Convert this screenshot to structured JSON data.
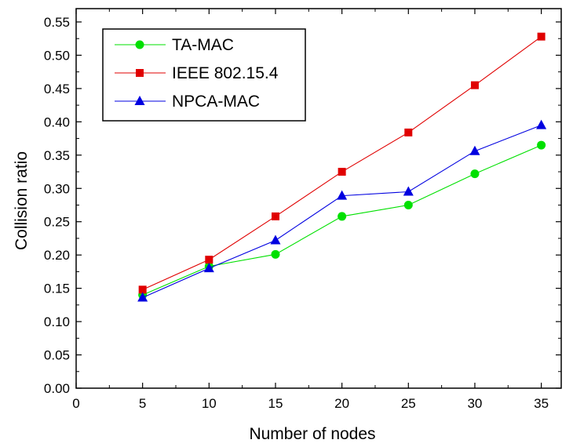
{
  "chart_data": {
    "type": "line",
    "title": "",
    "xlabel": "Number of nodes",
    "ylabel": "Collision ratio",
    "xlim": [
      0,
      36.5
    ],
    "ylim": [
      0,
      0.57
    ],
    "xticks": [
      0,
      5,
      10,
      15,
      20,
      25,
      30,
      35
    ],
    "yticks": [
      0.0,
      0.05,
      0.1,
      0.15,
      0.2,
      0.25,
      0.3,
      0.35,
      0.4,
      0.45,
      0.5,
      0.55
    ],
    "x_tick_labels": [
      "0",
      "5",
      "10",
      "15",
      "20",
      "25",
      "30",
      "35"
    ],
    "y_tick_labels": [
      "0.00",
      "0.05",
      "0.10",
      "0.15",
      "0.20",
      "0.25",
      "0.30",
      "0.35",
      "0.40",
      "0.45",
      "0.50",
      "0.55"
    ],
    "grid": false,
    "legend_position": "top-left",
    "x": [
      5,
      10,
      15,
      20,
      25,
      30,
      35
    ],
    "series": [
      {
        "name": "TA-MAC",
        "color": "#00e000",
        "marker": "circle",
        "values": [
          0.14,
          0.183,
          0.201,
          0.258,
          0.275,
          0.322,
          0.365
        ]
      },
      {
        "name": "IEEE 802.15.4",
        "color": "#e00000",
        "marker": "square",
        "values": [
          0.148,
          0.193,
          0.258,
          0.325,
          0.384,
          0.455,
          0.528
        ]
      },
      {
        "name": "NPCA-MAC",
        "color": "#0000e0",
        "marker": "triangle",
        "values": [
          0.136,
          0.18,
          0.222,
          0.289,
          0.295,
          0.356,
          0.395
        ]
      }
    ]
  }
}
